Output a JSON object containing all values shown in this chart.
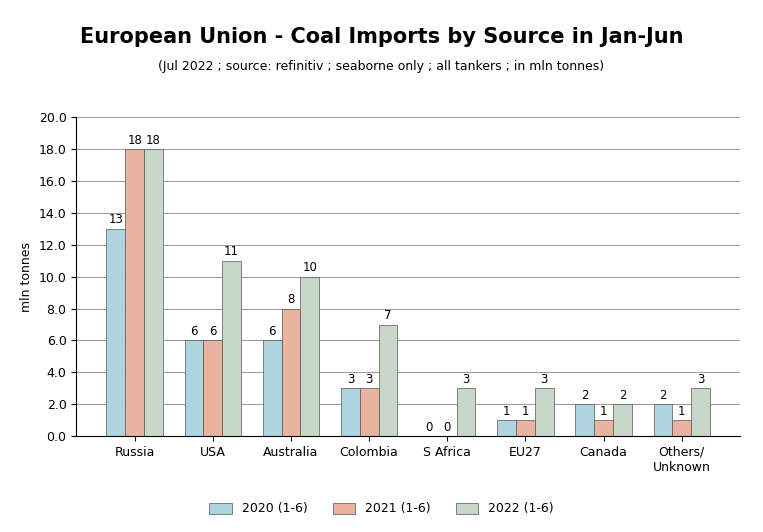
{
  "title": "European Union - Coal Imports by Source in Jan-Jun",
  "subtitle": "(Jul 2022 ; source: refinitiv ; seaborne only ; all tankers ; in mln tonnes)",
  "ylabel": "mln tonnes",
  "categories": [
    "Russia",
    "USA",
    "Australia",
    "Colombia",
    "S Africa",
    "EU27",
    "Canada",
    "Others/\nUnknown"
  ],
  "series": {
    "2020 (1-6)": [
      13,
      6,
      6,
      3,
      0,
      1,
      2,
      2
    ],
    "2021 (1-6)": [
      18,
      6,
      8,
      3,
      0,
      1,
      1,
      1
    ],
    "2022 (1-6)": [
      18,
      11,
      10,
      7,
      3,
      3,
      2,
      3
    ]
  },
  "colors": {
    "2020 (1-6)": "#aed4e0",
    "2021 (1-6)": "#e8b4a0",
    "2022 (1-6)": "#c8d8c8"
  },
  "ylim": [
    0,
    20.0
  ],
  "yticks": [
    0.0,
    2.0,
    4.0,
    6.0,
    8.0,
    10.0,
    12.0,
    14.0,
    16.0,
    18.0,
    20.0
  ],
  "background_color": "#ffffff",
  "grid_color": "#888888",
  "bar_edge_color": "#555555",
  "title_fontsize": 15,
  "subtitle_fontsize": 9,
  "label_fontsize": 8.5,
  "tick_fontsize": 9,
  "legend_fontsize": 9,
  "ylabel_fontsize": 9
}
